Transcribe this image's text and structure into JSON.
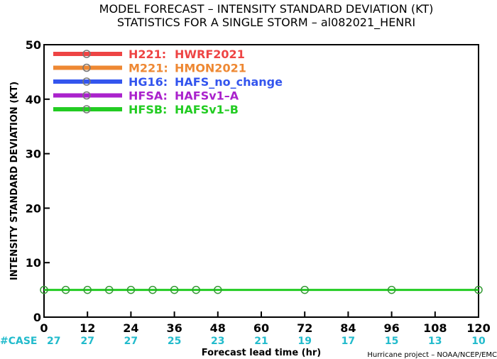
{
  "chart_data": {
    "type": "line",
    "title_lines": [
      "MODEL FORECAST – INTENSITY STANDARD DEVIATION (KT)",
      "STATISTICS FOR A SINGLE STORM – al082021_HENRI"
    ],
    "xlabel": "Forecast lead time (hr)",
    "ylabel": "INTENSITY STANDARD DEVIATION (KT)",
    "xlim": [
      0,
      120
    ],
    "ylim": [
      0,
      50
    ],
    "x_ticks": [
      0,
      12,
      24,
      36,
      48,
      60,
      72,
      84,
      96,
      108,
      120
    ],
    "y_ticks": [
      0,
      10,
      20,
      30,
      40,
      50
    ],
    "grid": false,
    "legend_position": "top-left",
    "case_header": "#CASE",
    "case_counts": [
      {
        "x": 0,
        "n": "27"
      },
      {
        "x": 12,
        "n": "27"
      },
      {
        "x": 24,
        "n": "27"
      },
      {
        "x": 36,
        "n": "25"
      },
      {
        "x": 48,
        "n": "23"
      },
      {
        "x": 60,
        "n": "21"
      },
      {
        "x": 72,
        "n": "19"
      },
      {
        "x": 84,
        "n": "17"
      },
      {
        "x": 96,
        "n": "15"
      },
      {
        "x": 108,
        "n": "13"
      },
      {
        "x": 120,
        "n": "10"
      }
    ],
    "series": [
      {
        "code": "H221:",
        "name": "HWRF2021",
        "color": "#ee4444",
        "x": [],
        "y": []
      },
      {
        "code": "M221:",
        "name": "HMON2021",
        "color": "#ee8833",
        "x": [],
        "y": []
      },
      {
        "code": "HG16:",
        "name": "HAFS_no_change",
        "color": "#3355ee",
        "x": [],
        "y": []
      },
      {
        "code": "HFSA:",
        "name": "HAFSv1–A",
        "color": "#aa22cc",
        "x": [],
        "y": []
      },
      {
        "code": "HFSB:",
        "name": "HAFSv1–B",
        "color": "#22cc22",
        "x": [
          0,
          6,
          12,
          18,
          24,
          30,
          36,
          42,
          48,
          72,
          96,
          120
        ],
        "y": [
          5,
          5,
          5,
          5,
          5,
          5,
          5,
          5,
          5,
          5,
          5,
          5
        ]
      }
    ],
    "case_color": "#22bbcc",
    "credit": "Hurricane project – NOAA/NCEP/EMC"
  }
}
